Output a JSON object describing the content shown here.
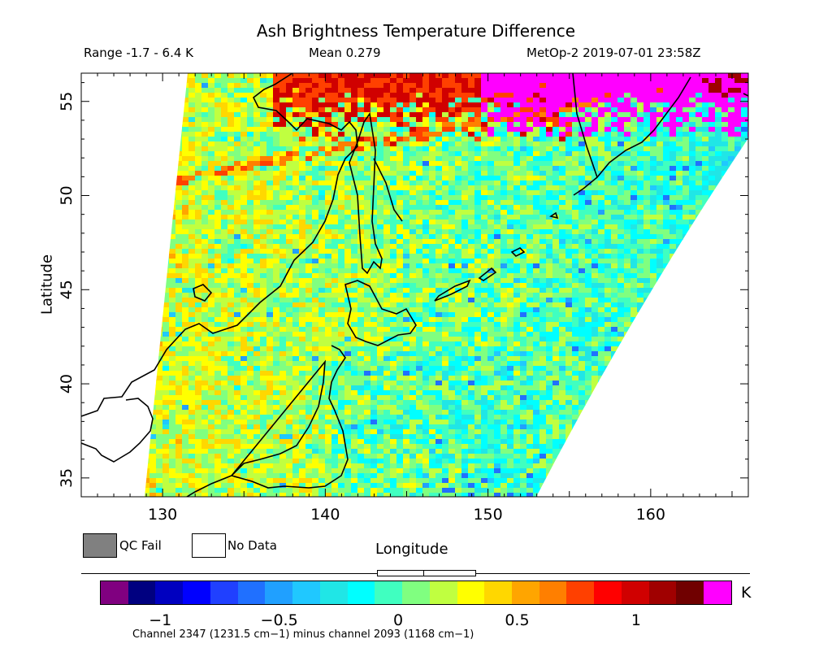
{
  "title": "Ash Brightness Temperature Difference",
  "subtitle": {
    "range": "Range -1.7 - 6.4 K",
    "mean": "Mean 0.279",
    "satellite_time": "MetOp-2 2019-07-01 23:58Z"
  },
  "axes": {
    "ylabel": "Latitude",
    "xlabel": "Longitude",
    "lon_range": [
      125,
      166
    ],
    "lat_range": [
      34,
      56.5
    ],
    "lon_ticks": [
      130,
      140,
      150,
      160
    ],
    "lat_ticks": [
      35,
      40,
      45,
      50,
      55
    ]
  },
  "legend": {
    "qc_fail": "QC Fail",
    "no_data": "No Data",
    "qc_fail_color": "#808080",
    "no_data_color": "#ffffff"
  },
  "colorbar": {
    "unit": "K",
    "ticks": [
      {
        "label": "−1",
        "value": -1
      },
      {
        "label": "−0.5",
        "value": -0.5
      },
      {
        "label": "0",
        "value": 0
      },
      {
        "label": "0.5",
        "value": 0.5
      },
      {
        "label": "1",
        "value": 1
      }
    ],
    "vmin": -1.25,
    "vmax": 1.4,
    "colors": [
      "#800080",
      "#000080",
      "#0000c0",
      "#0000ff",
      "#2040ff",
      "#2070ff",
      "#20a0ff",
      "#20c8ff",
      "#20e6e6",
      "#00ffff",
      "#40ffc0",
      "#80ff80",
      "#c0ff40",
      "#ffff00",
      "#ffd700",
      "#ffa500",
      "#ff7f00",
      "#ff4000",
      "#ff0000",
      "#d00000",
      "#a00000",
      "#700000",
      "#ff00ff"
    ]
  },
  "footnote": "Channel 2347 (1231.5 cm−1) minus channel 2093 (1168 cm−1)"
}
